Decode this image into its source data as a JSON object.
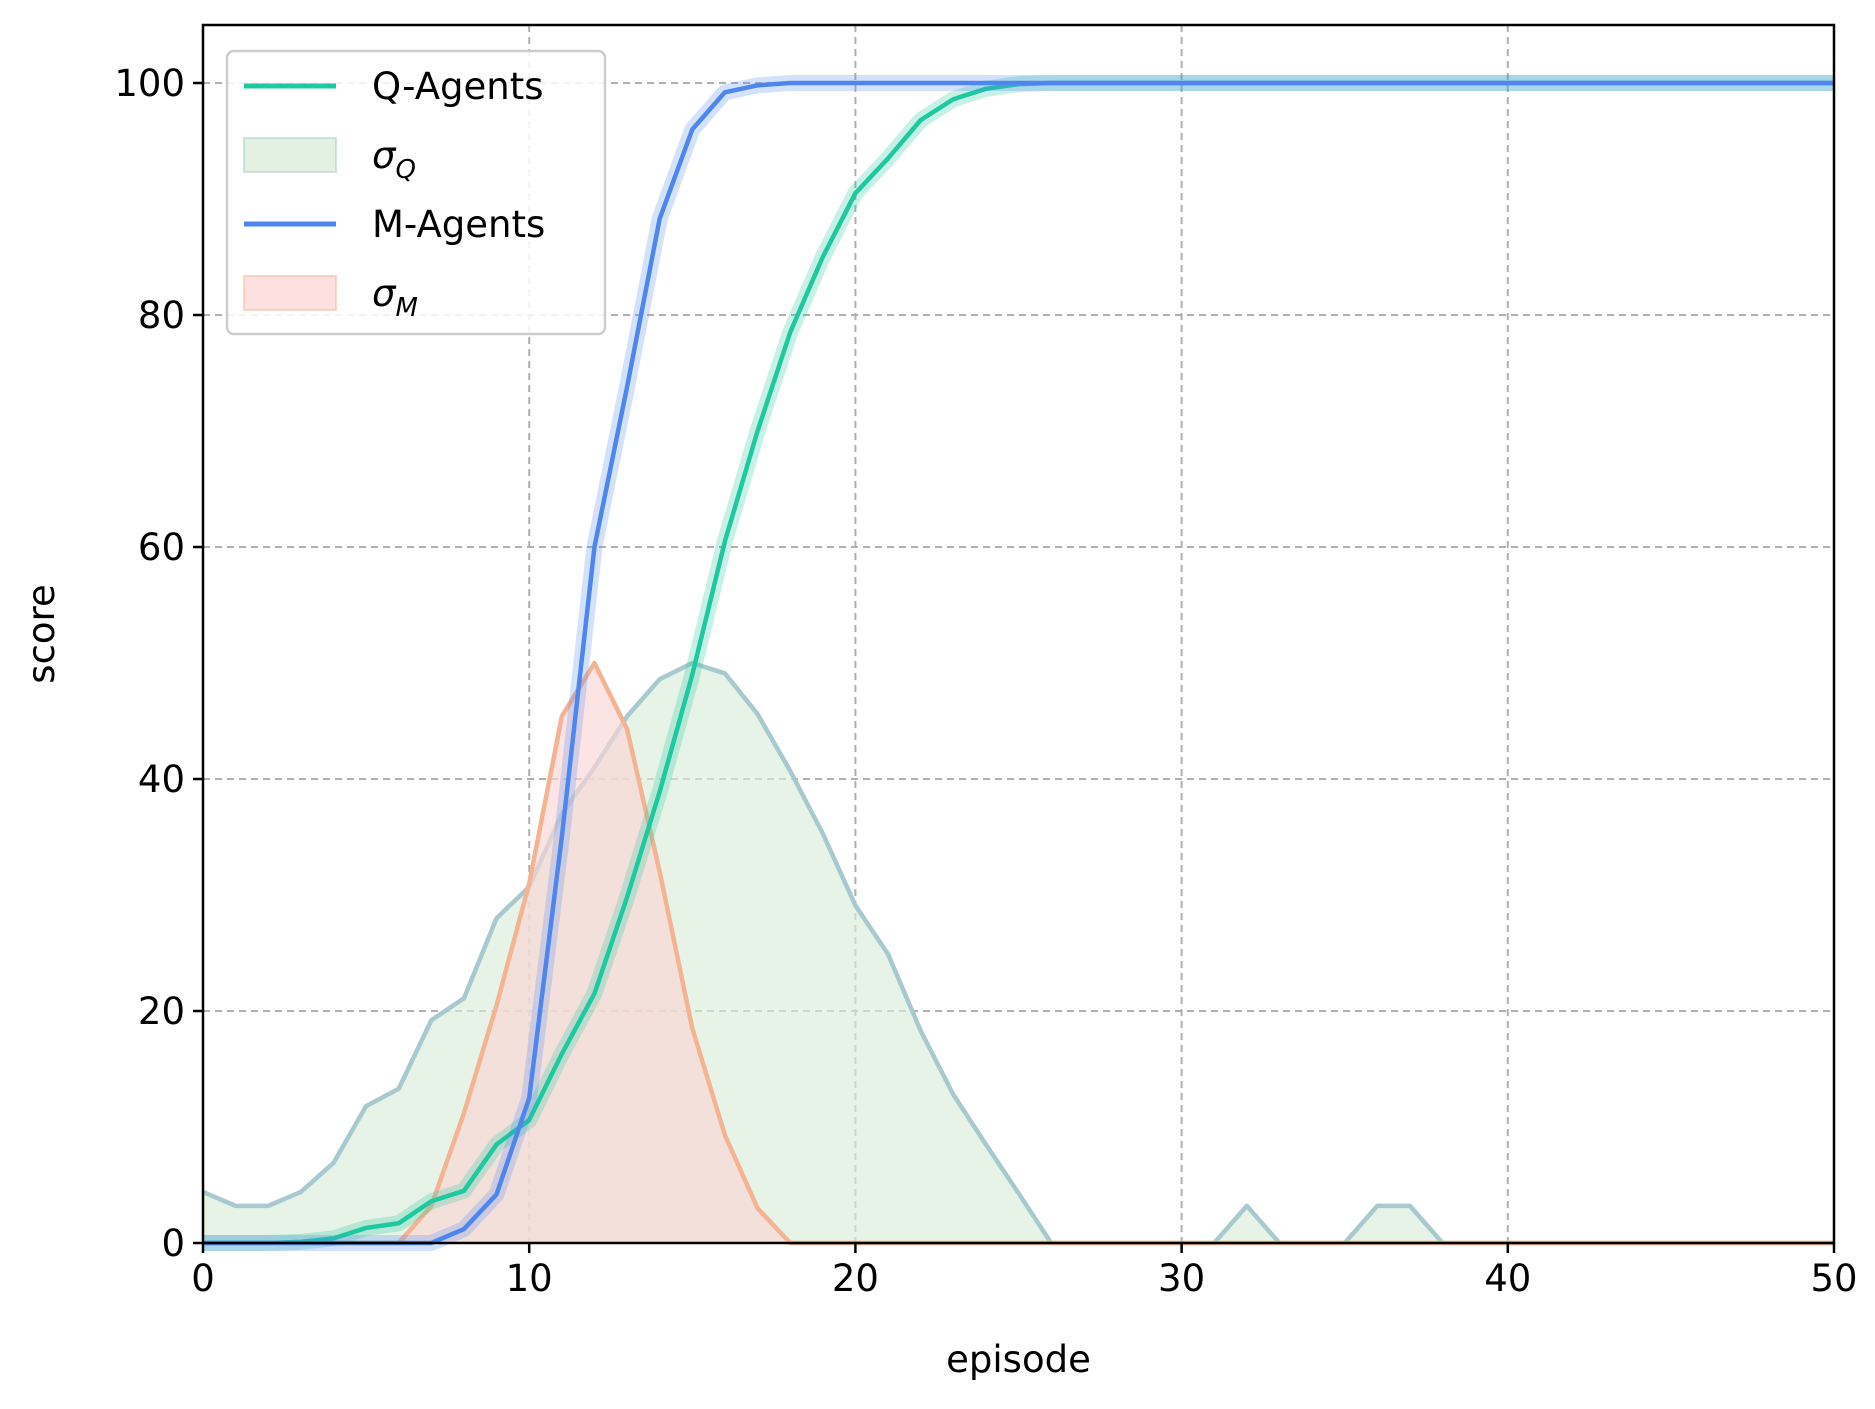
{
  "chart_data": {
    "type": "line",
    "title": "",
    "xlabel": "episode",
    "ylabel": "score",
    "xlim": [
      0,
      50
    ],
    "ylim": [
      0,
      105
    ],
    "x_ticks": [
      0,
      10,
      20,
      30,
      40,
      50
    ],
    "y_ticks": [
      0,
      20,
      40,
      60,
      80,
      100
    ],
    "grid": true,
    "legend_position": "top-left",
    "x": [
      0,
      1,
      2,
      3,
      4,
      5,
      6,
      7,
      8,
      9,
      10,
      11,
      12,
      13,
      14,
      15,
      16,
      17,
      18,
      19,
      20,
      21,
      22,
      23,
      24,
      25,
      26,
      27,
      28,
      29,
      30,
      31,
      32,
      33,
      34,
      35,
      36,
      37,
      38,
      39,
      40,
      41,
      42,
      43,
      44,
      45,
      46,
      47,
      48,
      49,
      50
    ],
    "series": [
      {
        "name": "Q-Agents",
        "kind": "line",
        "color": "#1ec9a0",
        "values": [
          0,
          0,
          0,
          0.1,
          0.4,
          1.3,
          1.7,
          3.6,
          4.5,
          8.5,
          10.6,
          16.3,
          21.5,
          29.8,
          38.9,
          49.0,
          60.5,
          70.0,
          78.5,
          85.0,
          90.5,
          93.5,
          96.8,
          98.6,
          99.5,
          99.9,
          100,
          100,
          100,
          100,
          100,
          100,
          100,
          100,
          100,
          100,
          100,
          100,
          100,
          100,
          100,
          100,
          100,
          100,
          100,
          100,
          100,
          100,
          100,
          100,
          100
        ]
      },
      {
        "name": "σ_Q",
        "kind": "area",
        "color": "#d9ecd9",
        "edge_color": "#a7c9cf",
        "values": [
          4.4,
          3.2,
          3.2,
          4.4,
          6.9,
          11.8,
          13.3,
          19.2,
          21.1,
          28.0,
          30.7,
          37.0,
          41.0,
          45.4,
          48.6,
          50.0,
          49.1,
          45.6,
          40.7,
          35.3,
          29.1,
          24.9,
          18.3,
          12.8,
          8.5,
          4.3,
          0,
          0,
          0,
          0,
          0,
          0,
          3.2,
          0,
          0,
          0,
          3.2,
          3.2,
          0,
          0,
          0,
          0,
          0,
          0,
          0,
          0,
          0,
          0,
          0,
          0,
          0
        ]
      },
      {
        "name": "M-Agents",
        "kind": "line",
        "color": "#4f86ee",
        "values": [
          0,
          0,
          0,
          0,
          0,
          0,
          0,
          0,
          1.2,
          4.2,
          12.5,
          35.0,
          60.0,
          73.8,
          88.3,
          96.0,
          99.2,
          99.8,
          100,
          100,
          100,
          100,
          100,
          100,
          100,
          100,
          100,
          100,
          100,
          100,
          100,
          100,
          100,
          100,
          100,
          100,
          100,
          100,
          100,
          100,
          100,
          100,
          100,
          100,
          100,
          100,
          100,
          100,
          100,
          100,
          100
        ]
      },
      {
        "name": "σ_M",
        "kind": "area",
        "color": "#fcd5d5",
        "edge_color": "#f4b393",
        "values": [
          0,
          0,
          0,
          0,
          0,
          0,
          0,
          3.2,
          11.2,
          20.5,
          31.0,
          45.4,
          50.0,
          44.3,
          32.0,
          18.5,
          9.3,
          3.0,
          0,
          0,
          0,
          0,
          0,
          0,
          0,
          0,
          0,
          0,
          0,
          0,
          0,
          0,
          0,
          0,
          0,
          0,
          0,
          0,
          0,
          0,
          0,
          0,
          0,
          0,
          0,
          0,
          0,
          0,
          0,
          0,
          0
        ]
      }
    ],
    "legend": [
      {
        "label": "Q-Agents",
        "sub": ""
      },
      {
        "label": "σ",
        "sub": "Q"
      },
      {
        "label": "M-Agents",
        "sub": ""
      },
      {
        "label": "σ",
        "sub": "M"
      }
    ]
  }
}
